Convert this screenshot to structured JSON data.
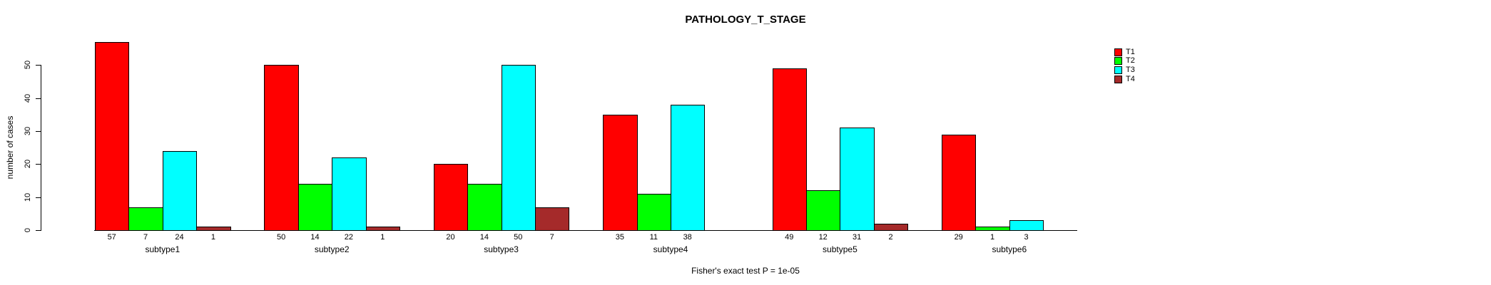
{
  "page": {
    "title": "PATHOLOGY_T_STAGE",
    "caption": "Fisher's exact test P = 1e-05"
  },
  "chart_data": {
    "type": "bar",
    "title": "PATHOLOGY_T_STAGE",
    "xlabel": "",
    "ylabel": "number of cases",
    "axis_yticks": [
      0,
      10,
      20,
      30,
      40,
      50
    ],
    "axis_ylim": [
      0,
      50
    ],
    "grid": false,
    "legend_position": "top-right-outside",
    "bar_value_labels_shown": true,
    "zero_values_unlabeled": true,
    "categories": [
      "subtype1",
      "subtype2",
      "subtype3",
      "subtype4",
      "subtype5",
      "subtype6"
    ],
    "series": [
      {
        "name": "T1",
        "color": "#FF0000",
        "values": [
          57,
          50,
          20,
          35,
          49,
          29
        ]
      },
      {
        "name": "T2",
        "color": "#00FF00",
        "values": [
          7,
          14,
          14,
          11,
          12,
          1
        ]
      },
      {
        "name": "T3",
        "color": "#00FFFF",
        "values": [
          24,
          22,
          50,
          38,
          31,
          3
        ]
      },
      {
        "name": "T4",
        "color": "#A52A2A",
        "values": [
          1,
          1,
          7,
          0,
          2,
          0
        ]
      }
    ],
    "annotation": "Fisher's exact test P = 1e-05"
  },
  "colors": {
    "background": "#FFFFFF",
    "axis": "#000000",
    "bar_border": "#000000",
    "text": "#000000"
  }
}
